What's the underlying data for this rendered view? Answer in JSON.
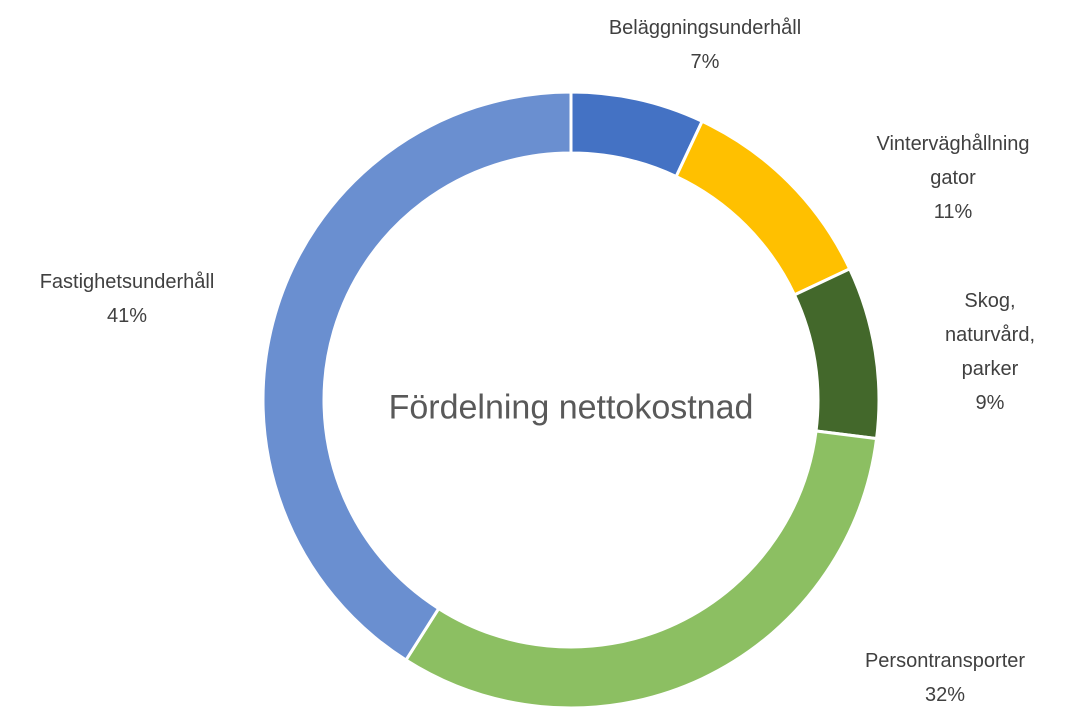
{
  "chart_data": {
    "type": "donut",
    "title": "Fördelning nettokostnad",
    "categories": [
      "Beläggningsunderhåll",
      "Vinterväghållning gator",
      "Skog, naturvård, parker",
      "Persontransporter",
      "Fastighetsunderhåll"
    ],
    "values": [
      7,
      11,
      9,
      32,
      41
    ],
    "value_labels": [
      "7%",
      "11%",
      "9%",
      "32%",
      "41%"
    ],
    "colors": [
      "#4472c4",
      "#ffc000",
      "#43682b",
      "#8cbf62",
      "#6a8fd0"
    ]
  }
}
